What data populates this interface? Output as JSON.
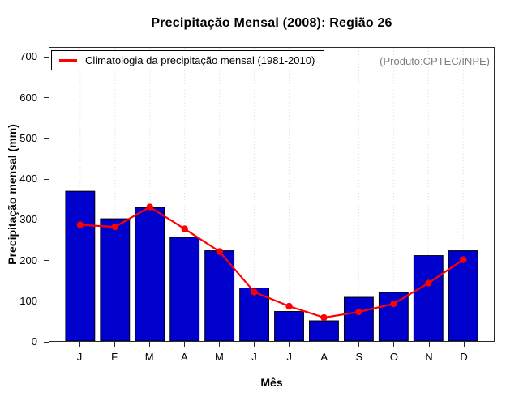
{
  "chart_data": {
    "type": "bar",
    "title": "Precipitação Mensal (2008): Região 26",
    "xlabel": "Mês",
    "ylabel": "Precipitação mensal (mm)",
    "categories": [
      "J",
      "F",
      "M",
      "A",
      "M",
      "J",
      "J",
      "A",
      "S",
      "O",
      "N",
      "D"
    ],
    "series": [
      {
        "name": "Precipitação mensal (2008)",
        "type": "bar",
        "color": "#0000CD",
        "values": [
          370,
          302,
          330,
          256,
          223,
          131,
          73,
          50,
          108,
          120,
          211,
          223
        ]
      },
      {
        "name": "Climatologia da precipitação mensal (1981-2010)",
        "type": "line",
        "color": "#FF0000",
        "values": [
          287,
          282,
          331,
          277,
          221,
          121,
          86,
          58,
          72,
          92,
          143,
          201
        ]
      }
    ],
    "ylim": [
      0,
      700
    ],
    "yticks": [
      0,
      100,
      200,
      300,
      400,
      500,
      600,
      700
    ],
    "grid": "vertical-dotted",
    "grid_color": "#D9D9D9",
    "bar_border_color": "#000000",
    "legend": {
      "position": "top-left",
      "entries": [
        {
          "label": "Climatologia da precipitação mensal (1981-2010)",
          "color": "#FF0000"
        }
      ]
    },
    "annotation": "(Produto:CPTEC/INPE)"
  }
}
